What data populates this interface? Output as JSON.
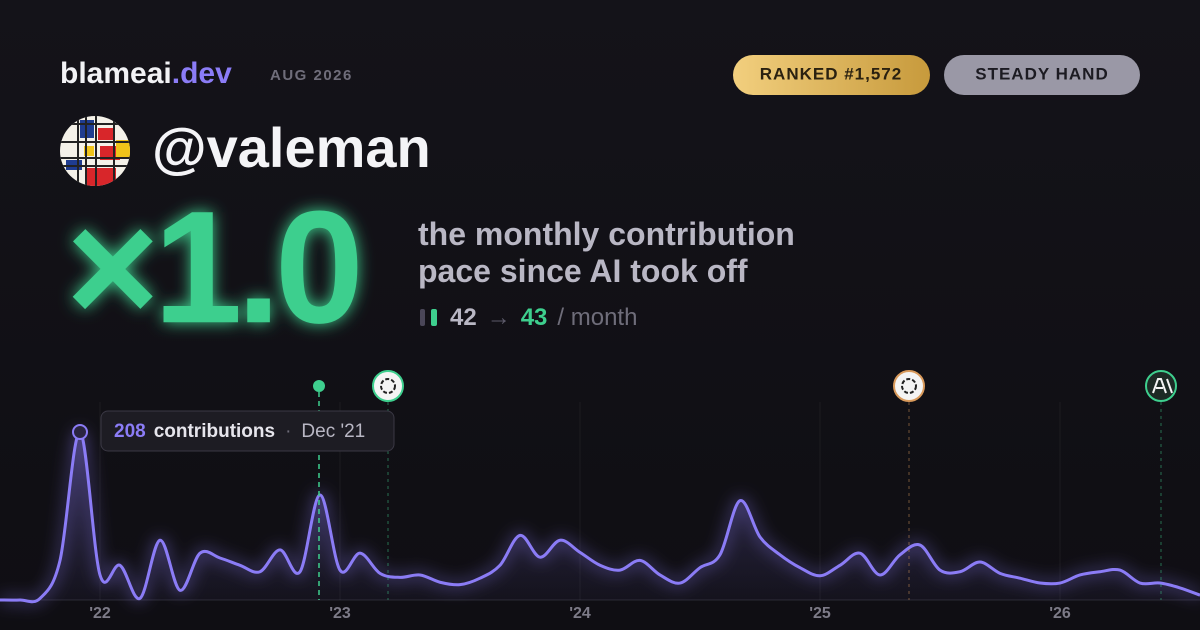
{
  "header": {
    "brand": "blameai",
    "brand_tld": ".dev",
    "date": "AUG 2026",
    "rank": "RANKED #1,572",
    "badge": "STEADY HAND"
  },
  "user": {
    "handle": "@valeman"
  },
  "multiplier": {
    "value": "×1.0",
    "caption": "the monthly contribution pace since AI took off",
    "before": 42,
    "arrow": "→",
    "after": 43,
    "unit": "/ month"
  },
  "chart_data": {
    "type": "line",
    "categories": [
      null,
      null,
      null,
      null,
      null,
      "'22",
      null,
      null,
      null,
      null,
      null,
      null,
      null,
      null,
      null,
      null,
      null,
      "'23",
      null,
      null,
      null,
      null,
      null,
      null,
      null,
      null,
      null,
      null,
      null,
      "'24",
      null,
      null,
      null,
      null,
      null,
      null,
      null,
      null,
      null,
      null,
      null,
      "'25",
      null,
      null,
      null,
      null,
      null,
      null,
      null,
      null,
      null,
      null,
      null,
      "'26",
      null,
      null,
      null,
      null,
      null,
      null,
      null
    ],
    "values": [
      0,
      0,
      2,
      49,
      208,
      31,
      43,
      2,
      74,
      12,
      58,
      52,
      43,
      35,
      62,
      35,
      130,
      37,
      58,
      33,
      28,
      31,
      22,
      19,
      27,
      43,
      80,
      53,
      74,
      59,
      43,
      37,
      49,
      31,
      21,
      40,
      56,
      123,
      78,
      56,
      40,
      30,
      43,
      58,
      31,
      56,
      68,
      37,
      35,
      47,
      33,
      27,
      21,
      21,
      31,
      35,
      37,
      21,
      21,
      15,
      6
    ],
    "color": "#8b7cf6",
    "tooltip": {
      "label": "contributions",
      "sep": "·",
      "date": "Dec '21"
    }
  }
}
